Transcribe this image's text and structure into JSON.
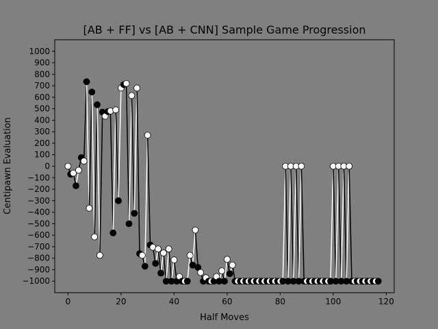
{
  "chart_data": {
    "type": "line",
    "title": "[AB + FF] vs [AB + CNN] Sample Game Progression",
    "xlabel": "Half Moves",
    "ylabel": "Centipawn Evaluation",
    "xlim": [
      -5,
      123
    ],
    "ylim": [
      -1100,
      1100
    ],
    "x_ticks": [
      0,
      20,
      40,
      60,
      80,
      100,
      120
    ],
    "y_ticks": [
      -1000,
      -900,
      -800,
      -700,
      -600,
      -500,
      -400,
      -300,
      -200,
      -100,
      0,
      100,
      200,
      300,
      400,
      500,
      600,
      700,
      800,
      900,
      1000
    ],
    "grid": false,
    "legend": "none",
    "x": [
      0,
      1,
      2,
      3,
      4,
      5,
      6,
      7,
      8,
      9,
      10,
      11,
      12,
      13,
      14,
      15,
      16,
      17,
      18,
      19,
      20,
      21,
      22,
      23,
      24,
      25,
      26,
      27,
      28,
      29,
      30,
      31,
      32,
      33,
      34,
      35,
      36,
      37,
      38,
      39,
      40,
      41,
      42,
      43,
      44,
      45,
      46,
      47,
      48,
      49,
      50,
      51,
      52,
      53,
      54,
      55,
      56,
      57,
      58,
      59,
      60,
      61,
      62,
      63,
      64,
      65,
      66,
      67,
      68,
      69,
      70,
      71,
      72,
      73,
      74,
      75,
      76,
      77,
      78,
      79,
      80,
      81,
      82,
      83,
      84,
      85,
      86,
      87,
      88,
      89,
      90,
      91,
      92,
      93,
      94,
      95,
      96,
      97,
      98,
      99,
      100,
      101,
      102,
      103,
      104,
      105,
      106,
      107,
      108,
      109,
      110,
      111,
      112,
      113,
      114,
      115,
      116,
      117
    ],
    "y": [
      0,
      -70,
      -60,
      -170,
      -35,
      75,
      45,
      735,
      -365,
      645,
      -615,
      535,
      -775,
      470,
      435,
      475,
      480,
      -580,
      490,
      -300,
      680,
      710,
      720,
      -500,
      615,
      -410,
      680,
      -760,
      -775,
      -870,
      270,
      -685,
      -705,
      -845,
      -720,
      -930,
      -755,
      -1000,
      -720,
      -1000,
      -815,
      -1000,
      -960,
      -1000,
      -1000,
      -1000,
      -775,
      -860,
      -555,
      -880,
      -925,
      -1000,
      -970,
      -1000,
      -1000,
      -1000,
      -960,
      -1000,
      -910,
      -1000,
      -810,
      -935,
      -860,
      -1000,
      -1000,
      -1000,
      -1000,
      -1000,
      -1000,
      -1000,
      -1000,
      -1000,
      -1000,
      -1000,
      -1000,
      -1000,
      -1000,
      -1000,
      -1000,
      -1000,
      -1000,
      -1000,
      0,
      -1000,
      0,
      -1000,
      0,
      -1000,
      0,
      -1000,
      -1000,
      -1000,
      -1000,
      -1000,
      -1000,
      -1000,
      -1000,
      -1000,
      -1000,
      -1000,
      0,
      -1000,
      0,
      -1000,
      0,
      -1000,
      0,
      -1000,
      -1000,
      -1000,
      -1000,
      -1000,
      -1000,
      -1000,
      -1000,
      -1000,
      -1000,
      -1000
    ],
    "colors": {
      "background": "#808080",
      "white_moves": "#ffffff",
      "black_moves": "#000000",
      "axes_frame": "#000000"
    }
  }
}
